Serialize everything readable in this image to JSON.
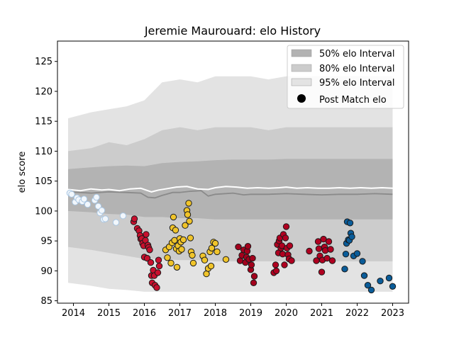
{
  "chart_data": {
    "type": "scatter",
    "title": "Jeremie Maurouard: elo History",
    "xlabel": "",
    "ylabel": "elo score",
    "xlim": [
      2013.55,
      2023.45
    ],
    "ylim": [
      84.6,
      128.4
    ],
    "x_ticks": [
      2014,
      2015,
      2016,
      2017,
      2018,
      2019,
      2020,
      2021,
      2022,
      2023
    ],
    "y_ticks": [
      85,
      90,
      95,
      100,
      105,
      110,
      115,
      120,
      125
    ],
    "grid": false,
    "legend_position": "top-right",
    "legend": [
      {
        "label": "50% elo Interval",
        "kind": "band",
        "color": "#b3b3b3"
      },
      {
        "label": "80% elo Interval",
        "kind": "band",
        "color": "#cccccc"
      },
      {
        "label": "95% elo Interval",
        "kind": "band",
        "color": "#e3e3e3"
      },
      {
        "label": "Post Match elo",
        "kind": "marker",
        "color": "#000000"
      }
    ],
    "bands": {
      "x": [
        2013.85,
        2014.5,
        2015.0,
        2015.5,
        2016.0,
        2016.5,
        2017.0,
        2017.5,
        2018.0,
        2018.5,
        2019.0,
        2019.5,
        2020.0,
        2020.5,
        2021.0,
        2021.5,
        2022.0,
        2022.5,
        2023.0
      ],
      "p95_upper": [
        115.5,
        116.5,
        117.0,
        117.5,
        118.5,
        121.5,
        122.0,
        121.5,
        122.5,
        122.5,
        122.5,
        122.0,
        122.5,
        122.5,
        122.5,
        122.5,
        122.5,
        122.5,
        122.5
      ],
      "p80_upper": [
        110.0,
        110.5,
        111.5,
        111.0,
        112.0,
        113.5,
        114.0,
        113.5,
        114.0,
        114.0,
        114.0,
        113.5,
        114.0,
        114.0,
        114.0,
        114.0,
        114.0,
        114.0,
        114.0
      ],
      "p50_upper": [
        107.0,
        107.3,
        107.5,
        107.6,
        107.5,
        108.0,
        108.2,
        108.3,
        108.5,
        108.6,
        108.6,
        108.6,
        108.7,
        108.7,
        108.7,
        108.7,
        108.7,
        108.7,
        108.7
      ],
      "p50_lower": [
        100.0,
        99.8,
        99.5,
        99.4,
        99.0,
        99.0,
        98.8,
        98.8,
        98.6,
        98.6,
        98.6,
        98.6,
        98.6,
        98.6,
        98.6,
        98.6,
        98.6,
        98.6,
        98.6
      ],
      "p80_lower": [
        94.0,
        93.5,
        93.0,
        92.5,
        92.0,
        92.0,
        91.8,
        91.8,
        91.6,
        91.6,
        91.6,
        91.6,
        91.6,
        91.6,
        91.6,
        91.6,
        91.6,
        91.6,
        91.6
      ],
      "p95_lower": [
        88.0,
        87.5,
        87.0,
        86.8,
        86.5,
        86.5,
        86.5,
        86.5,
        86.5,
        86.5,
        86.5,
        86.5,
        86.5,
        86.5,
        86.5,
        86.5,
        86.5,
        86.5,
        86.5
      ]
    },
    "mean_line": {
      "x": [
        2013.85,
        2014.2,
        2014.5,
        2014.8,
        2015.0,
        2015.3,
        2015.6,
        2015.9,
        2016.2,
        2016.4,
        2016.6,
        2016.9,
        2017.2,
        2017.5,
        2017.8,
        2018.0,
        2018.3,
        2018.6,
        2018.9,
        2019.2,
        2019.5,
        2019.8,
        2020.0,
        2020.3,
        2020.6,
        2020.9,
        2021.2,
        2021.5,
        2021.8,
        2022.1,
        2022.4,
        2022.7,
        2023.0
      ],
      "y": [
        103.6,
        103.4,
        103.7,
        103.5,
        103.6,
        103.4,
        103.7,
        103.8,
        103.2,
        103.5,
        103.7,
        104.0,
        104.1,
        103.7,
        103.6,
        103.9,
        104.1,
        104.0,
        103.8,
        103.9,
        103.8,
        103.9,
        104.0,
        103.8,
        103.9,
        103.8,
        103.8,
        103.9,
        103.8,
        103.9,
        103.8,
        103.9,
        103.8
      ],
      "color": "#ffffff"
    },
    "median_line": {
      "x": [
        2013.85,
        2014.5,
        2015.0,
        2015.5,
        2015.9,
        2016.1,
        2016.3,
        2016.5,
        2016.8,
        2017.0,
        2017.3,
        2017.6,
        2017.8,
        2018.0,
        2018.5,
        2018.8,
        2019.0,
        2019.5,
        2020.0,
        2020.5,
        2021.0,
        2021.5,
        2022.0,
        2022.5,
        2023.0
      ],
      "y": [
        103.2,
        103.0,
        103.2,
        103.1,
        103.0,
        102.3,
        102.2,
        102.6,
        103.1,
        103.1,
        103.3,
        103.4,
        102.5,
        102.8,
        103.0,
        102.7,
        102.8,
        102.8,
        102.9,
        102.8,
        102.7,
        102.8,
        102.8,
        102.9,
        102.8
      ],
      "color": "#8a8a8a"
    },
    "series": [
      {
        "color": "#f2f7fc",
        "x": [
          2013.9,
          2013.95,
          2014.05,
          2014.1,
          2014.15,
          2014.25,
          2014.3,
          2014.4,
          2014.6,
          2014.65,
          2014.7,
          2014.75,
          2014.8,
          2014.85,
          2014.9,
          2015.2,
          2015.4
        ],
        "y": [
          103.0,
          102.8,
          101.5,
          102.2,
          101.9,
          101.6,
          102.0,
          101.1,
          101.8,
          102.3,
          100.8,
          99.7,
          100.1,
          98.6,
          98.7,
          98.1,
          99.2
        ]
      },
      {
        "color": "#c8102e",
        "x": [
          2015.7,
          2015.72,
          2015.8,
          2015.85,
          2015.88,
          2015.9,
          2015.93,
          2015.95,
          2015.98,
          2016.0,
          2016.03,
          2016.05,
          2016.08,
          2016.1,
          2016.12,
          2016.15,
          2016.18,
          2016.2,
          2016.22,
          2016.25,
          2016.28,
          2016.3,
          2016.35,
          2016.38,
          2016.4,
          2016.42
        ],
        "y": [
          98.2,
          98.7,
          97.1,
          96.7,
          95.9,
          95.3,
          95.4,
          94.6,
          94.2,
          92.3,
          95.1,
          96.1,
          92.1,
          94.3,
          93.9,
          93.5,
          91.4,
          89.2,
          88.0,
          90.1,
          89.2,
          87.6,
          87.2,
          89.7,
          91.8,
          90.8
        ]
      },
      {
        "color": "#f0c42a",
        "x": [
          2016.6,
          2016.65,
          2016.7,
          2016.75,
          2016.78,
          2016.8,
          2016.82,
          2016.85,
          2016.88,
          2016.9,
          2016.92,
          2016.95,
          2016.98,
          2017.0,
          2017.03,
          2017.05,
          2017.1,
          2017.15,
          2017.2,
          2017.22,
          2017.25,
          2017.27,
          2017.3,
          2017.32,
          2017.35,
          2017.38,
          2017.65,
          2017.7,
          2017.75,
          2017.8,
          2017.85,
          2017.88,
          2017.9,
          2017.95,
          2018.0,
          2018.05,
          2018.3
        ],
        "y": [
          93.5,
          92.2,
          94.0,
          91.3,
          94.7,
          97.2,
          99.0,
          95.1,
          96.8,
          93.7,
          90.6,
          94.2,
          93.3,
          95.4,
          94.8,
          93.6,
          95.2,
          97.6,
          100.1,
          99.4,
          101.3,
          98.3,
          95.5,
          93.2,
          92.6,
          91.3,
          92.5,
          91.8,
          89.5,
          90.4,
          93.2,
          90.8,
          93.8,
          94.8,
          94.6,
          93.2,
          91.9
        ]
      },
      {
        "color": "#a3001c",
        "x": [
          2018.65,
          2018.7,
          2018.75,
          2018.8,
          2018.85,
          2018.88,
          2018.9,
          2018.92,
          2018.95,
          2019.0,
          2019.02,
          2019.05,
          2019.08,
          2019.1
        ],
        "y": [
          94.0,
          91.7,
          92.6,
          93.5,
          91.4,
          92.3,
          93.3,
          94.1,
          91.9,
          90.2,
          91.0,
          92.1,
          88.0,
          89.1
        ]
      },
      {
        "color": "#b00020",
        "x": [
          2019.65,
          2019.7,
          2019.72,
          2019.75,
          2019.78,
          2019.8,
          2019.82,
          2019.85,
          2019.88,
          2019.9,
          2019.92,
          2019.95,
          2019.98,
          2020.0,
          2020.02,
          2020.05,
          2020.08,
          2020.1,
          2020.15,
          2020.65,
          2020.85,
          2020.9,
          2020.92,
          2020.95,
          2021.0,
          2021.02,
          2021.05,
          2021.08,
          2021.1,
          2021.15,
          2021.2,
          2021.25,
          2021.3
        ],
        "y": [
          89.7,
          91.0,
          90.0,
          94.4,
          93.0,
          95.0,
          95.5,
          93.8,
          94.2,
          92.8,
          96.1,
          91.0,
          95.5,
          97.4,
          93.8,
          92.7,
          92.0,
          94.2,
          91.7,
          93.3,
          91.7,
          94.9,
          93.7,
          92.5,
          89.8,
          91.8,
          95.3,
          94.0,
          93.4,
          92.1,
          94.9,
          93.6,
          91.7
        ]
      },
      {
        "color": "#0a5c99",
        "x": [
          2021.65,
          2021.68,
          2021.7,
          2021.72,
          2021.75,
          2021.78,
          2021.8,
          2021.82,
          2021.85,
          2021.9,
          2022.0,
          2022.15,
          2022.2,
          2022.3,
          2022.4,
          2022.65,
          2022.9,
          2023.0
        ],
        "y": [
          90.3,
          92.8,
          94.6,
          98.2,
          95.2,
          95.1,
          98.0,
          96.3,
          95.7,
          92.5,
          92.9,
          91.6,
          89.2,
          87.6,
          86.8,
          88.3,
          88.8,
          87.4
        ]
      }
    ]
  }
}
